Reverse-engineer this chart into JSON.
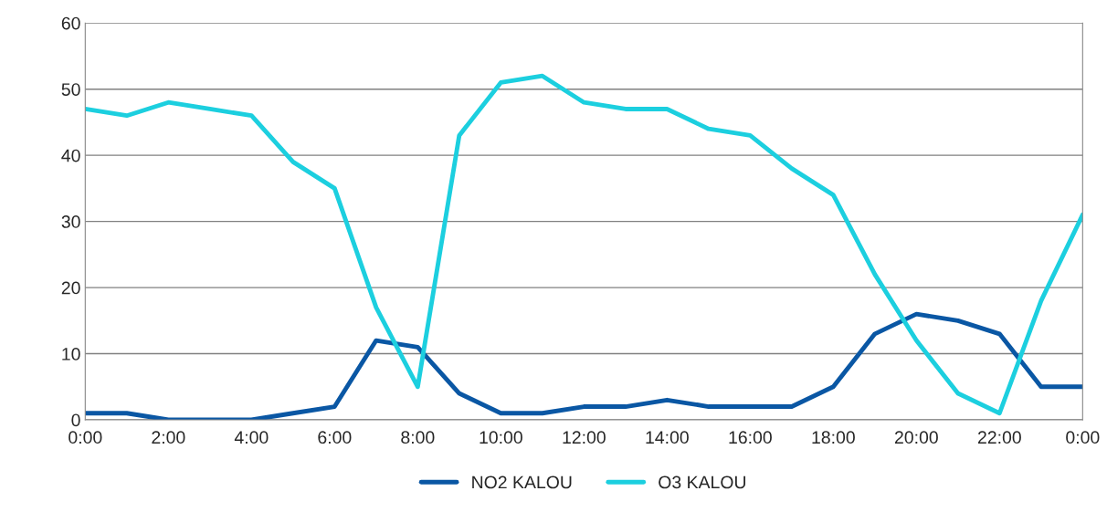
{
  "chart_data": {
    "type": "line",
    "categories": [
      "0:00",
      null,
      "2:00",
      null,
      "4:00",
      null,
      "6:00",
      null,
      "8:00",
      null,
      "10:00",
      null,
      "12:00",
      null,
      "14:00",
      null,
      "16:00",
      null,
      "18:00",
      null,
      "20:00",
      null,
      "22:00",
      null,
      "0:00"
    ],
    "series": [
      {
        "name": "NO2 KALOU",
        "color": "#0a57a4",
        "values": [
          1,
          1,
          0,
          0,
          0,
          1,
          2,
          12,
          11,
          4,
          1,
          1,
          2,
          2,
          3,
          2,
          2,
          2,
          5,
          13,
          16,
          15,
          13,
          5,
          5
        ]
      },
      {
        "name": "O3 KALOU",
        "color": "#1ccfdf",
        "values": [
          47,
          46,
          48,
          47,
          46,
          39,
          35,
          17,
          5,
          43,
          51,
          52,
          48,
          47,
          47,
          44,
          43,
          38,
          34,
          22,
          12,
          4,
          1,
          18,
          31
        ]
      }
    ],
    "ylim": [
      0,
      60
    ],
    "yticks": [
      0,
      10,
      20,
      30,
      40,
      50,
      60
    ],
    "grid": "y",
    "legend": "bottom",
    "marker": "none",
    "line_style": "solid"
  }
}
